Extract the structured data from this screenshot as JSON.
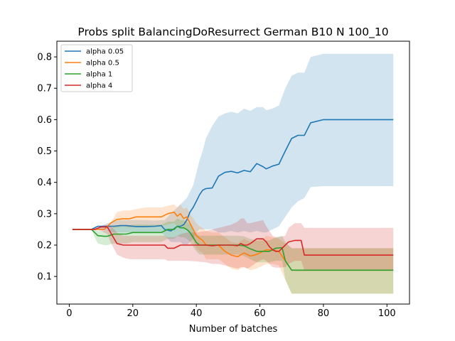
{
  "chart_data": {
    "type": "line",
    "title": "Probs split BalancingDoResurrect German B10 N 100_10",
    "xlabel": "Number of batches",
    "ylabel": "",
    "xlim": [
      -3.9,
      107.1
    ],
    "ylim": [
      0.012,
      0.85
    ],
    "xticks": [
      0,
      20,
      40,
      60,
      80,
      100
    ],
    "yticks": [
      0.1,
      0.2,
      0.3,
      0.4,
      0.5,
      0.6,
      0.7,
      0.8
    ],
    "grid": false,
    "legend_position": "upper-left",
    "series": [
      {
        "name": "alpha 0.05",
        "color": "#1f77b4",
        "x": [
          1,
          7,
          9,
          12,
          14,
          16,
          18,
          21,
          24,
          27,
          29,
          30,
          32,
          34,
          35,
          36,
          37,
          38,
          39,
          40,
          41,
          42,
          43,
          45,
          47,
          49,
          51,
          53,
          55,
          57,
          59,
          61,
          62,
          64,
          66,
          68,
          70,
          72,
          74,
          76,
          80,
          102
        ],
        "mean": [
          0.25,
          0.25,
          0.26,
          0.26,
          0.26,
          0.262,
          0.262,
          0.259,
          0.259,
          0.26,
          0.262,
          0.25,
          0.245,
          0.26,
          0.26,
          0.265,
          0.28,
          0.305,
          0.32,
          0.34,
          0.36,
          0.375,
          0.38,
          0.382,
          0.42,
          0.432,
          0.435,
          0.43,
          0.438,
          0.434,
          0.46,
          0.45,
          0.443,
          0.452,
          0.458,
          0.5,
          0.54,
          0.55,
          0.55,
          0.59,
          0.6,
          0.6
        ],
        "upper": [
          0.25,
          0.25,
          0.255,
          0.27,
          0.275,
          0.28,
          0.28,
          0.28,
          0.28,
          0.278,
          0.28,
          0.28,
          0.3,
          0.32,
          0.33,
          0.34,
          0.35,
          0.37,
          0.39,
          0.43,
          0.47,
          0.5,
          0.54,
          0.58,
          0.61,
          0.62,
          0.625,
          0.62,
          0.635,
          0.628,
          0.64,
          0.64,
          0.63,
          0.635,
          0.645,
          0.7,
          0.74,
          0.75,
          0.75,
          0.8,
          0.81,
          0.81
        ],
        "lower": [
          0.25,
          0.25,
          0.25,
          0.245,
          0.24,
          0.24,
          0.24,
          0.24,
          0.24,
          0.24,
          0.24,
          0.23,
          0.21,
          0.21,
          0.21,
          0.2,
          0.2,
          0.21,
          0.22,
          0.24,
          0.25,
          0.25,
          0.25,
          0.25,
          0.24,
          0.24,
          0.245,
          0.24,
          0.245,
          0.24,
          0.245,
          0.24,
          0.24,
          0.25,
          0.26,
          0.29,
          0.32,
          0.34,
          0.35,
          0.385,
          0.388,
          0.388
        ]
      },
      {
        "name": "alpha 0.5",
        "color": "#ff7f0e",
        "x": [
          1,
          11,
          13,
          15,
          17,
          19,
          21,
          24,
          27,
          29,
          31,
          33,
          34,
          35,
          36,
          37,
          38,
          39,
          40,
          41,
          42,
          43,
          45,
          47,
          49,
          51,
          53,
          55,
          57,
          59,
          61,
          62,
          64,
          66,
          70,
          102
        ],
        "mean": [
          0.25,
          0.25,
          0.27,
          0.282,
          0.284,
          0.284,
          0.29,
          0.29,
          0.29,
          0.29,
          0.3,
          0.305,
          0.292,
          0.3,
          0.285,
          0.29,
          0.27,
          0.25,
          0.23,
          0.222,
          0.215,
          0.2,
          0.2,
          0.2,
          0.18,
          0.168,
          0.163,
          0.175,
          0.165,
          0.17,
          0.18,
          0.185,
          0.184,
          0.18,
          0.12,
          0.12
        ],
        "upper": [
          0.25,
          0.25,
          0.27,
          0.305,
          0.31,
          0.31,
          0.315,
          0.32,
          0.32,
          0.32,
          0.325,
          0.33,
          0.32,
          0.33,
          0.315,
          0.32,
          0.3,
          0.285,
          0.27,
          0.26,
          0.255,
          0.245,
          0.24,
          0.24,
          0.225,
          0.21,
          0.205,
          0.22,
          0.21,
          0.215,
          0.22,
          0.23,
          0.225,
          0.22,
          0.19,
          0.19
        ],
        "lower": [
          0.25,
          0.25,
          0.255,
          0.255,
          0.26,
          0.255,
          0.26,
          0.26,
          0.26,
          0.26,
          0.265,
          0.27,
          0.26,
          0.265,
          0.25,
          0.255,
          0.235,
          0.215,
          0.19,
          0.18,
          0.175,
          0.155,
          0.155,
          0.155,
          0.14,
          0.125,
          0.12,
          0.13,
          0.12,
          0.125,
          0.135,
          0.14,
          0.14,
          0.135,
          0.045,
          0.045
        ]
      },
      {
        "name": "alpha 1",
        "color": "#2ca02c",
        "x": [
          1,
          7,
          8,
          9,
          11,
          12,
          14,
          16,
          18,
          20,
          24,
          27,
          29,
          31,
          33,
          34,
          35,
          36,
          37,
          38,
          39,
          40,
          41,
          43,
          45,
          47,
          49,
          51,
          53,
          55,
          57,
          59,
          61,
          63,
          65,
          67,
          68,
          70,
          102
        ],
        "mean": [
          0.25,
          0.25,
          0.24,
          0.23,
          0.228,
          0.228,
          0.235,
          0.235,
          0.235,
          0.24,
          0.24,
          0.24,
          0.24,
          0.25,
          0.25,
          0.26,
          0.255,
          0.255,
          0.25,
          0.24,
          0.225,
          0.208,
          0.2,
          0.2,
          0.2,
          0.2,
          0.2,
          0.2,
          0.2,
          0.198,
          0.188,
          0.18,
          0.18,
          0.18,
          0.19,
          0.192,
          0.15,
          0.12,
          0.12
        ],
        "upper": [
          0.25,
          0.25,
          0.25,
          0.245,
          0.245,
          0.245,
          0.26,
          0.26,
          0.26,
          0.265,
          0.265,
          0.265,
          0.265,
          0.275,
          0.275,
          0.285,
          0.28,
          0.28,
          0.275,
          0.265,
          0.25,
          0.235,
          0.23,
          0.23,
          0.23,
          0.23,
          0.23,
          0.23,
          0.23,
          0.228,
          0.22,
          0.215,
          0.215,
          0.215,
          0.225,
          0.23,
          0.21,
          0.19,
          0.19
        ],
        "lower": [
          0.25,
          0.25,
          0.225,
          0.205,
          0.2,
          0.2,
          0.205,
          0.205,
          0.205,
          0.21,
          0.21,
          0.21,
          0.21,
          0.22,
          0.22,
          0.23,
          0.225,
          0.225,
          0.22,
          0.21,
          0.195,
          0.18,
          0.17,
          0.17,
          0.17,
          0.17,
          0.17,
          0.17,
          0.17,
          0.165,
          0.155,
          0.145,
          0.145,
          0.145,
          0.15,
          0.15,
          0.09,
          0.045,
          0.045
        ]
      },
      {
        "name": "alpha 4",
        "color": "#d62728",
        "x": [
          1,
          8,
          10,
          12,
          13,
          15,
          17,
          19,
          22,
          25,
          28,
          30,
          31,
          33,
          35,
          37,
          40,
          43,
          45,
          47,
          49,
          51,
          53,
          54,
          55,
          56,
          57,
          59,
          61,
          62,
          63,
          64,
          65,
          66,
          68,
          69,
          71,
          73,
          74,
          102
        ],
        "mean": [
          0.25,
          0.25,
          0.258,
          0.258,
          0.24,
          0.205,
          0.2,
          0.2,
          0.2,
          0.2,
          0.2,
          0.2,
          0.19,
          0.19,
          0.2,
          0.2,
          0.2,
          0.2,
          0.198,
          0.2,
          0.2,
          0.2,
          0.198,
          0.205,
          0.2,
          0.2,
          0.205,
          0.22,
          0.22,
          0.21,
          0.195,
          0.185,
          0.18,
          0.18,
          0.2,
          0.21,
          0.215,
          0.215,
          0.168,
          0.168
        ],
        "upper": [
          0.25,
          0.25,
          0.262,
          0.265,
          0.262,
          0.24,
          0.23,
          0.23,
          0.23,
          0.23,
          0.23,
          0.23,
          0.225,
          0.225,
          0.235,
          0.24,
          0.24,
          0.245,
          0.25,
          0.255,
          0.26,
          0.265,
          0.275,
          0.285,
          0.285,
          0.27,
          0.27,
          0.275,
          0.28,
          0.26,
          0.245,
          0.23,
          0.225,
          0.225,
          0.23,
          0.255,
          0.27,
          0.27,
          0.255,
          0.255
        ],
        "lower": [
          0.25,
          0.25,
          0.245,
          0.235,
          0.21,
          0.17,
          0.16,
          0.155,
          0.155,
          0.155,
          0.155,
          0.155,
          0.15,
          0.15,
          0.15,
          0.15,
          0.148,
          0.145,
          0.14,
          0.14,
          0.135,
          0.13,
          0.125,
          0.13,
          0.13,
          0.125,
          0.13,
          0.145,
          0.155,
          0.15,
          0.14,
          0.13,
          0.128,
          0.128,
          0.13,
          0.14,
          0.15,
          0.15,
          0.12,
          0.12
        ]
      }
    ]
  }
}
